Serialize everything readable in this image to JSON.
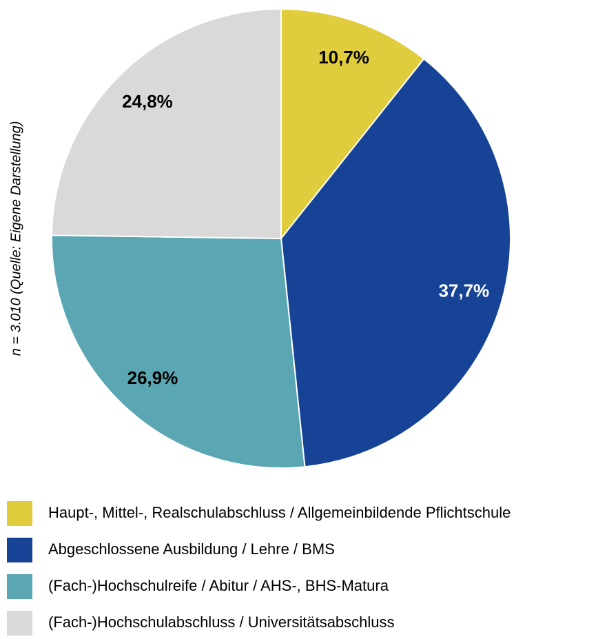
{
  "chart_data": {
    "type": "pie",
    "annotation": "n = 3.010 (Quelle: Eigene Darstellung)",
    "categories": [
      "Haupt-, Mittel-, Realschulabschluss / Allgemeinbildende Pflichtschule",
      "Abgeschlossene Ausbildung / Lehre / BMS",
      "(Fach-)Hochschulreife / Abitur / AHS-, BHS-Matura",
      "(Fach-)Hochschulabschluss / Universitätsabschluss"
    ],
    "values": [
      10.7,
      37.7,
      26.9,
      24.8
    ],
    "value_labels": [
      "10,7%",
      "37,7%",
      "26,9%",
      "24,8%"
    ],
    "colors": [
      "#e0cd3e",
      "#174396",
      "#5aa7b3",
      "#d9d9d9"
    ],
    "label_colors": [
      "#000000",
      "#ffffff",
      "#000000",
      "#000000"
    ]
  }
}
